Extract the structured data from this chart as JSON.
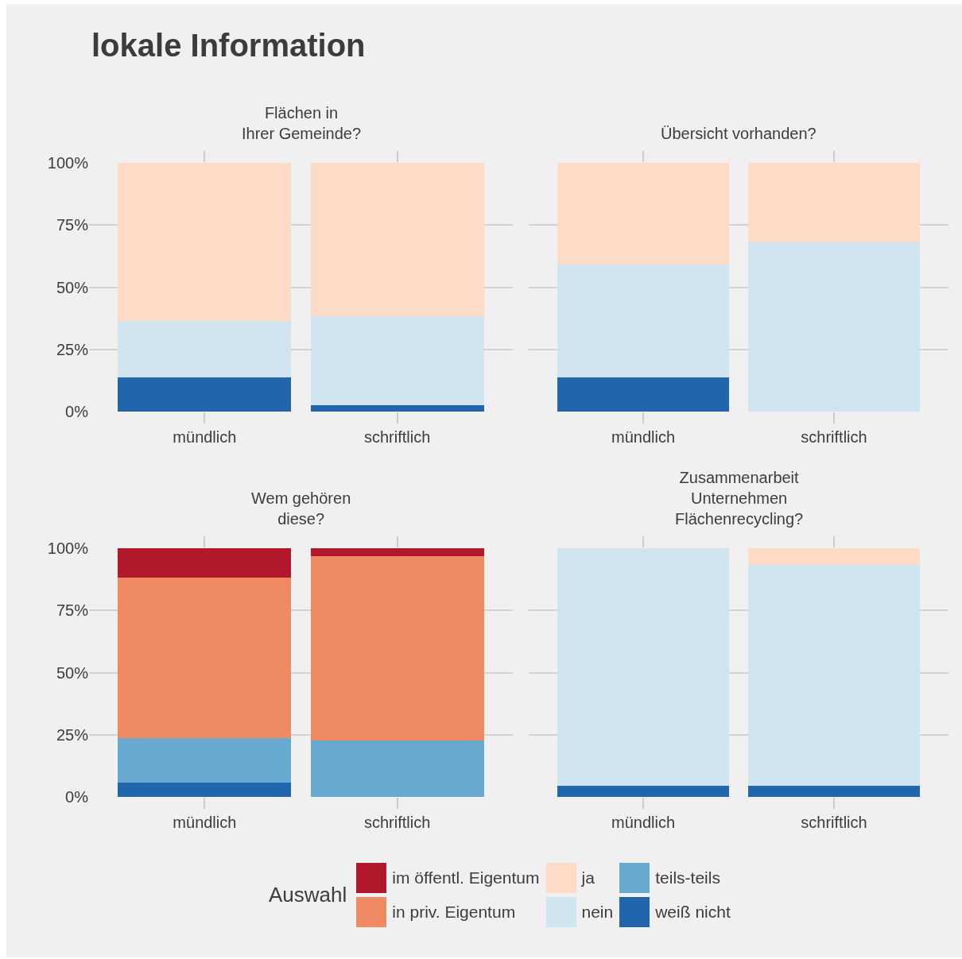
{
  "chart_data": [
    {
      "type": "bar",
      "stacked": true,
      "title": "lokale Information",
      "subtitle": "Flächen in\nIhrer Gemeinde?",
      "legend": "bottom",
      "legend_title": "Auswahl",
      "grid": "y",
      "categories": [
        "mündlich",
        "schriftlich"
      ],
      "ylim": [
        0,
        100
      ],
      "yticks": [
        {
          "value": 0,
          "label": "0%"
        },
        {
          "value": 25,
          "label": "25%"
        },
        {
          "value": 50,
          "label": "50%"
        },
        {
          "value": 75,
          "label": "75%"
        },
        {
          "value": 100,
          "label": "100%"
        }
      ],
      "series": [
        {
          "name": "weiß nicht",
          "color": "#2166ac",
          "values": [
            13.6,
            2.6
          ]
        },
        {
          "name": "nein",
          "color": "#d1e5f0",
          "values": [
            22.7,
            35.9
          ]
        },
        {
          "name": "ja",
          "color": "#fddbc7",
          "values": [
            63.7,
            61.5
          ]
        }
      ]
    },
    {
      "type": "bar",
      "stacked": true,
      "subtitle": "Übersicht vorhanden?",
      "legend": "bottom",
      "grid": "y",
      "tick_labels": "x",
      "categories": [
        "mündlich",
        "schriftlich"
      ],
      "ylim": [
        0,
        100
      ],
      "yticks": [
        {
          "value": 0,
          "label": "0%"
        },
        {
          "value": 25,
          "label": "25%"
        },
        {
          "value": 50,
          "label": "50%"
        },
        {
          "value": 75,
          "label": "75%"
        },
        {
          "value": 100,
          "label": "100%"
        }
      ],
      "series": [
        {
          "name": "weiß nicht",
          "color": "#2166ac",
          "values": [
            13.6,
            0
          ]
        },
        {
          "name": "nein",
          "color": "#d1e5f0",
          "values": [
            45.5,
            68
          ]
        },
        {
          "name": "ja",
          "color": "#fddbc7",
          "values": [
            40.9,
            32
          ]
        }
      ]
    },
    {
      "type": "bar",
      "stacked": true,
      "subtitle": "Wem gehören\ndiese?",
      "legend": "bottom",
      "grid": "y",
      "categories": [
        "mündlich",
        "schriftlich"
      ],
      "ylim": [
        0,
        100
      ],
      "yticks": [
        {
          "value": 0,
          "label": "0%"
        },
        {
          "value": 25,
          "label": "25%"
        },
        {
          "value": 50,
          "label": "50%"
        },
        {
          "value": 75,
          "label": "75%"
        },
        {
          "value": 100,
          "label": "100%"
        }
      ],
      "series": [
        {
          "name": "weiß nicht",
          "color": "#2166ac",
          "values": [
            5.9,
            0
          ]
        },
        {
          "name": "teils-teils",
          "color": "#67a9cf",
          "values": [
            17.6,
            22.6
          ]
        },
        {
          "name": "in priv. Eigentum",
          "color": "#ef8a62",
          "values": [
            64.7,
            74.2
          ]
        },
        {
          "name": "im öffentl. Eigentum",
          "color": "#b2182b",
          "values": [
            11.8,
            3.2
          ]
        }
      ]
    },
    {
      "type": "bar",
      "stacked": true,
      "subtitle": "Zusammenarbeit\nUnternehmen\nFlächenrecycling?",
      "legend": "bottom",
      "grid": "y",
      "tick_labels": "x",
      "categories": [
        "mündlich",
        "schriftlich"
      ],
      "ylim": [
        0,
        100
      ],
      "yticks": [
        {
          "value": 0,
          "label": "0%"
        },
        {
          "value": 25,
          "label": "25%"
        },
        {
          "value": 50,
          "label": "50%"
        },
        {
          "value": 75,
          "label": "75%"
        },
        {
          "value": 100,
          "label": "100%"
        }
      ],
      "series": [
        {
          "name": "weiß nicht",
          "color": "#2166ac",
          "values": [
            4.5,
            4.4
          ]
        },
        {
          "name": "nein",
          "color": "#d1e5f0",
          "values": [
            95.5,
            88.9
          ]
        },
        {
          "name": "ja",
          "color": "#fddbc7",
          "values": [
            0,
            6.7
          ]
        }
      ]
    }
  ]
}
